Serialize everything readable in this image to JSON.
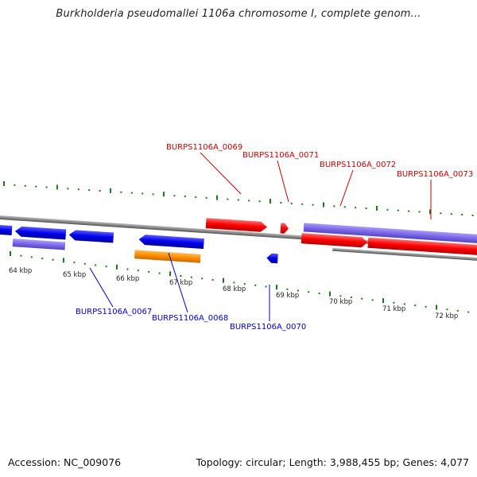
{
  "title": "Burkholderia pseudomallei 1106a chromosome I, complete genom...",
  "footer": {
    "accession": "Accession: NC_009076",
    "summary": "Topology: circular; Length: 3,988,455 bp; Genes: 4,077"
  },
  "scale": {
    "ticks": [
      "64 kbp",
      "65 kbp",
      "66 kbp",
      "67 kbp",
      "68 kbp",
      "69 kbp",
      "70 kbp",
      "71 kbp",
      "72 kbp"
    ]
  },
  "labels": {
    "g0067": "BURPS1106A_0067",
    "g0068": "BURPS1106A_0068",
    "g0069": "BURPS1106A_0069",
    "g0070": "BURPS1106A_0070",
    "g0071": "BURPS1106A_0071",
    "g0072": "BURPS1106A_0072",
    "g0073": "BURPS1106A_0073"
  },
  "colors": {
    "forward_gene": "#ff0000",
    "reverse_gene": "#0000ee",
    "highlight_gene": "#ff8c00",
    "cds_track": "#7b68ee",
    "backbone": "#888888",
    "ticks": "#1a7a1a",
    "label_forward": "#cc0000",
    "label_reverse": "#0000cc"
  }
}
